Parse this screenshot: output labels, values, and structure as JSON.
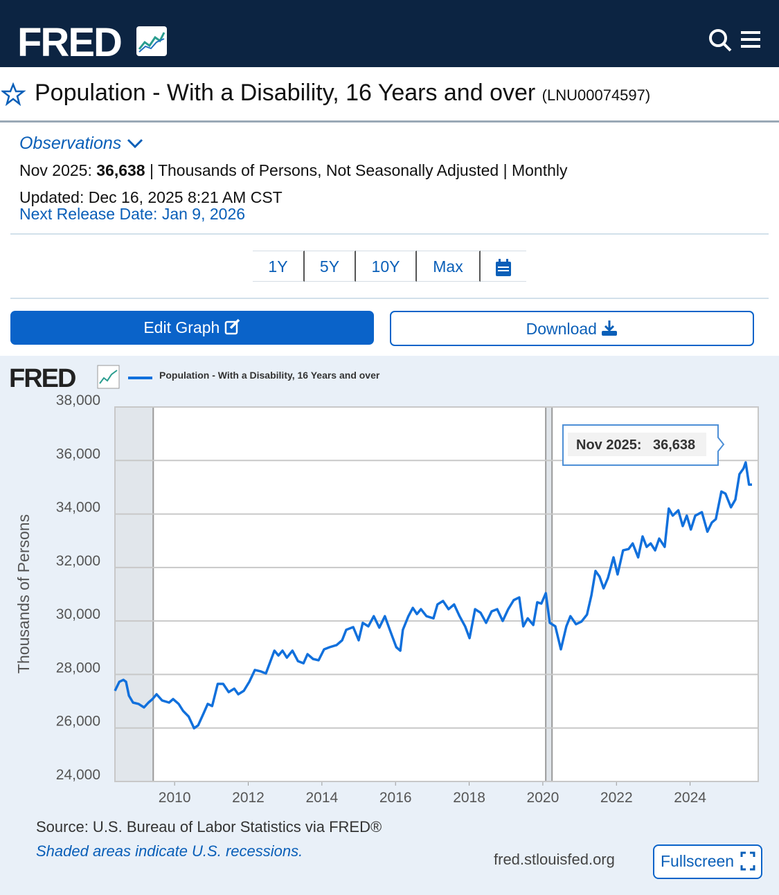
{
  "header": {
    "logo": "FRED"
  },
  "series_title": "Population - With a Disability, 16 Years and over",
  "series_id": "(LNU00074597)",
  "observations": {
    "toggle": "Observations",
    "date": "Nov 2025:",
    "value": "36,638",
    "units": "| Thousands of Persons, Not Seasonally Adjusted | Monthly",
    "updated": "Updated: Dec 16, 2025 8:21 AM CST",
    "next_release": "Next Release Date: Jan 9, 2026"
  },
  "ranges": [
    "1Y",
    "5Y",
    "10Y",
    "Max"
  ],
  "buttons": {
    "edit": "Edit Graph",
    "download": "Download",
    "fullscreen": "Fullscreen"
  },
  "chart_data": {
    "type": "line",
    "logo": "FRED",
    "ylabel": "Thousands of Persons",
    "source": "Source: U.S. Bureau of Labor Statistics via FRED®",
    "note": "Shaded areas indicate U.S. recessions.",
    "site": "fred.stlouisfed.org",
    "tooltip": {
      "label": "Nov 2025:",
      "value_label": "36,638"
    },
    "recessions": [
      [
        2008.38,
        2009.42
      ],
      [
        2020.08,
        2020.25
      ]
    ],
    "xlim": [
      2008.38,
      2025.85
    ],
    "xticks": [
      2010,
      2012,
      2014,
      2016,
      2018,
      2020,
      2022,
      2024
    ],
    "ylim": [
      24000,
      38000
    ],
    "yticks": [
      {
        "value": 24000,
        "label": "24,000"
      },
      {
        "value": 26000,
        "label": "26,000"
      },
      {
        "value": 28000,
        "label": "28,000"
      },
      {
        "value": 30000,
        "label": "30,000"
      },
      {
        "value": 32000,
        "label": "32,000"
      },
      {
        "value": 34000,
        "label": "34,000"
      },
      {
        "value": 36000,
        "label": "36,000"
      },
      {
        "value": 38000,
        "label": "38,000"
      }
    ],
    "grid": true,
    "x": [
      2008.38,
      2008.5,
      2008.61,
      2008.68,
      2008.76,
      2008.87,
      2009.02,
      2009.17,
      2009.29,
      2009.4,
      2009.51,
      2009.66,
      2009.85,
      2009.96,
      2010.11,
      2010.23,
      2010.38,
      2010.53,
      2010.64,
      2010.79,
      2010.9,
      2011.02,
      2011.17,
      2011.32,
      2011.47,
      2011.62,
      2011.73,
      2011.88,
      2012.03,
      2012.18,
      2012.33,
      2012.48,
      2012.71,
      2012.82,
      2012.93,
      2013.05,
      2013.2,
      2013.35,
      2013.5,
      2013.61,
      2013.76,
      2013.91,
      2014.06,
      2014.21,
      2014.4,
      2014.55,
      2014.66,
      2014.85,
      2015.0,
      2015.11,
      2015.26,
      2015.41,
      2015.56,
      2015.71,
      2015.86,
      2016.02,
      2016.13,
      2016.2,
      2016.35,
      2016.47,
      2016.58,
      2016.69,
      2016.84,
      2017.03,
      2017.14,
      2017.29,
      2017.44,
      2017.59,
      2017.74,
      2017.89,
      2018.01,
      2018.16,
      2018.31,
      2018.46,
      2018.61,
      2018.76,
      2018.91,
      2019.06,
      2019.21,
      2019.36,
      2019.47,
      2019.59,
      2019.74,
      2019.85,
      2019.96,
      2020.08,
      2020.19,
      2020.34,
      2020.49,
      2020.64,
      2020.75,
      2020.9,
      2021.05,
      2021.2,
      2021.32,
      2021.43,
      2021.54,
      2021.65,
      2021.77,
      2021.92,
      2022.03,
      2022.18,
      2022.33,
      2022.44,
      2022.59,
      2022.71,
      2022.82,
      2022.93,
      2023.05,
      2023.16,
      2023.31,
      2023.42,
      2023.53,
      2023.68,
      2023.8,
      2023.91,
      2024.02,
      2024.14,
      2024.32,
      2024.47,
      2024.59,
      2024.7,
      2024.85,
      2024.96,
      2025.11,
      2025.23,
      2025.34,
      2025.45,
      2025.51,
      2025.6,
      2025.68
    ],
    "series": [
      {
        "name": "Population - With a Disability, 16 Years and over",
        "color": "#1170dc",
        "values": [
          27390,
          27730,
          27800,
          27730,
          27210,
          26950,
          26900,
          26770,
          26950,
          27080,
          27260,
          27030,
          26950,
          27080,
          26900,
          26640,
          26430,
          25990,
          26100,
          26560,
          26900,
          26820,
          27650,
          27650,
          27340,
          27470,
          27260,
          27390,
          27730,
          28170,
          28120,
          28040,
          28890,
          28710,
          28890,
          28630,
          28890,
          28500,
          28420,
          28760,
          28580,
          28530,
          28940,
          29020,
          29100,
          29280,
          29670,
          29770,
          29280,
          29930,
          29800,
          30180,
          29750,
          30180,
          29610,
          29020,
          28890,
          29670,
          30180,
          30490,
          30260,
          30440,
          30180,
          30100,
          30620,
          30750,
          30440,
          30620,
          30180,
          29800,
          29360,
          30440,
          30310,
          29930,
          30360,
          30440,
          30000,
          30440,
          30780,
          30880,
          29800,
          30100,
          29850,
          30700,
          30650,
          31040,
          29930,
          29800,
          28940,
          29800,
          30180,
          29880,
          29980,
          30240,
          30960,
          31870,
          31660,
          31220,
          31610,
          32380,
          31740,
          32640,
          32690,
          32900,
          32380,
          33160,
          32770,
          32900,
          32640,
          33080,
          32770,
          34200,
          33940,
          34140,
          33550,
          33940,
          33420,
          33940,
          34070,
          33340,
          33680,
          33810,
          34840,
          34760,
          34250,
          34540,
          35490,
          35700,
          35930,
          35100,
          35100
        ]
      }
    ]
  }
}
